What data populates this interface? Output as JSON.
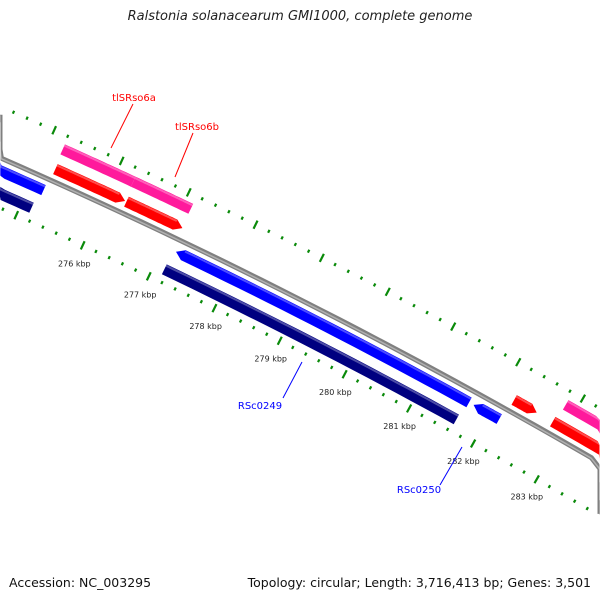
{
  "title": "Ralstonia solanacearum GMI1000, complete genome",
  "footer": {
    "accession": "Accession: NC_003295",
    "summary": "Topology: circular; Length: 3,716,413 bp; Genes: 3,501"
  },
  "colors": {
    "backbone": "#808080",
    "ticks": "#0a8a0a",
    "tick_label": "#222222",
    "forward_cds": "#ff0000",
    "forward_other": "#ff1a9c",
    "reverse_cds": "#0000ff",
    "reverse_other": "#000080"
  },
  "tick_labels": [
    {
      "kbp": 276,
      "text": "276 kbp"
    },
    {
      "kbp": 277,
      "text": "277 kbp"
    },
    {
      "kbp": 278,
      "text": "278 kbp"
    },
    {
      "kbp": 279,
      "text": "279 kbp"
    },
    {
      "kbp": 280,
      "text": "280 kbp"
    },
    {
      "kbp": 281,
      "text": "281 kbp"
    },
    {
      "kbp": 282,
      "text": "282 kbp"
    },
    {
      "kbp": 283,
      "text": "283 kbp"
    }
  ],
  "features": [
    {
      "name": "tlSRso6a-pink",
      "track": "forward_other",
      "start": 275.21,
      "end": 276.26,
      "arrow": null,
      "color": "#ff1a9c"
    },
    {
      "name": "tlSRso6b-pink",
      "track": "forward_other",
      "start": 276.26,
      "end": 277.12,
      "arrow": null,
      "color": "#ff1a9c"
    },
    {
      "name": "forward-gene-1",
      "track": "forward_cds",
      "start": 275.23,
      "end": 276.27,
      "arrow": "end",
      "color": "#ff0000"
    },
    {
      "name": "forward-gene-2",
      "track": "forward_cds",
      "start": 276.29,
      "end": 277.13,
      "arrow": "end",
      "color": "#ff0000"
    },
    {
      "name": "forward-gene-3",
      "track": "forward_cds",
      "start": 282.2,
      "end": 282.55,
      "arrow": "end",
      "color": "#ff0000"
    },
    {
      "name": "forward-gene-4",
      "track": "forward_cds",
      "start": 282.8,
      "end": 285,
      "arrow": null,
      "color": "#ff0000"
    },
    {
      "name": "forward-other-3",
      "track": "forward_other",
      "start": 282.84,
      "end": 285,
      "arrow": null,
      "color": "#ff1a9c"
    },
    {
      "name": "reverse-gene-1",
      "track": "reverse_cds",
      "start": 273,
      "end": 275.2,
      "arrow": null,
      "color": "#0000ff"
    },
    {
      "name": "reverse-other-1",
      "track": "reverse_other",
      "start": 273,
      "end": 275.15,
      "arrow": null,
      "color": "#000080"
    },
    {
      "name": "RSc0249-gene",
      "track": "reverse_cds",
      "start": 277.19,
      "end": 281.68,
      "arrow": "start",
      "color": "#0000ff"
    },
    {
      "name": "reverse-other-2",
      "track": "reverse_other",
      "start": 277.15,
      "end": 281.64,
      "arrow": null,
      "color": "#000080"
    },
    {
      "name": "RSc0250-gene",
      "track": "reverse_cds",
      "start": 281.75,
      "end": 282.15,
      "arrow": "start",
      "color": "#0000ff"
    }
  ],
  "labels": [
    {
      "text": "tlSRso6a",
      "color": "#ff0000"
    },
    {
      "text": "tlSRso6b",
      "color": "#ff0000"
    },
    {
      "text": "RSc0249",
      "color": "#0000ff"
    },
    {
      "text": "RSc0250",
      "color": "#0000ff"
    }
  ]
}
